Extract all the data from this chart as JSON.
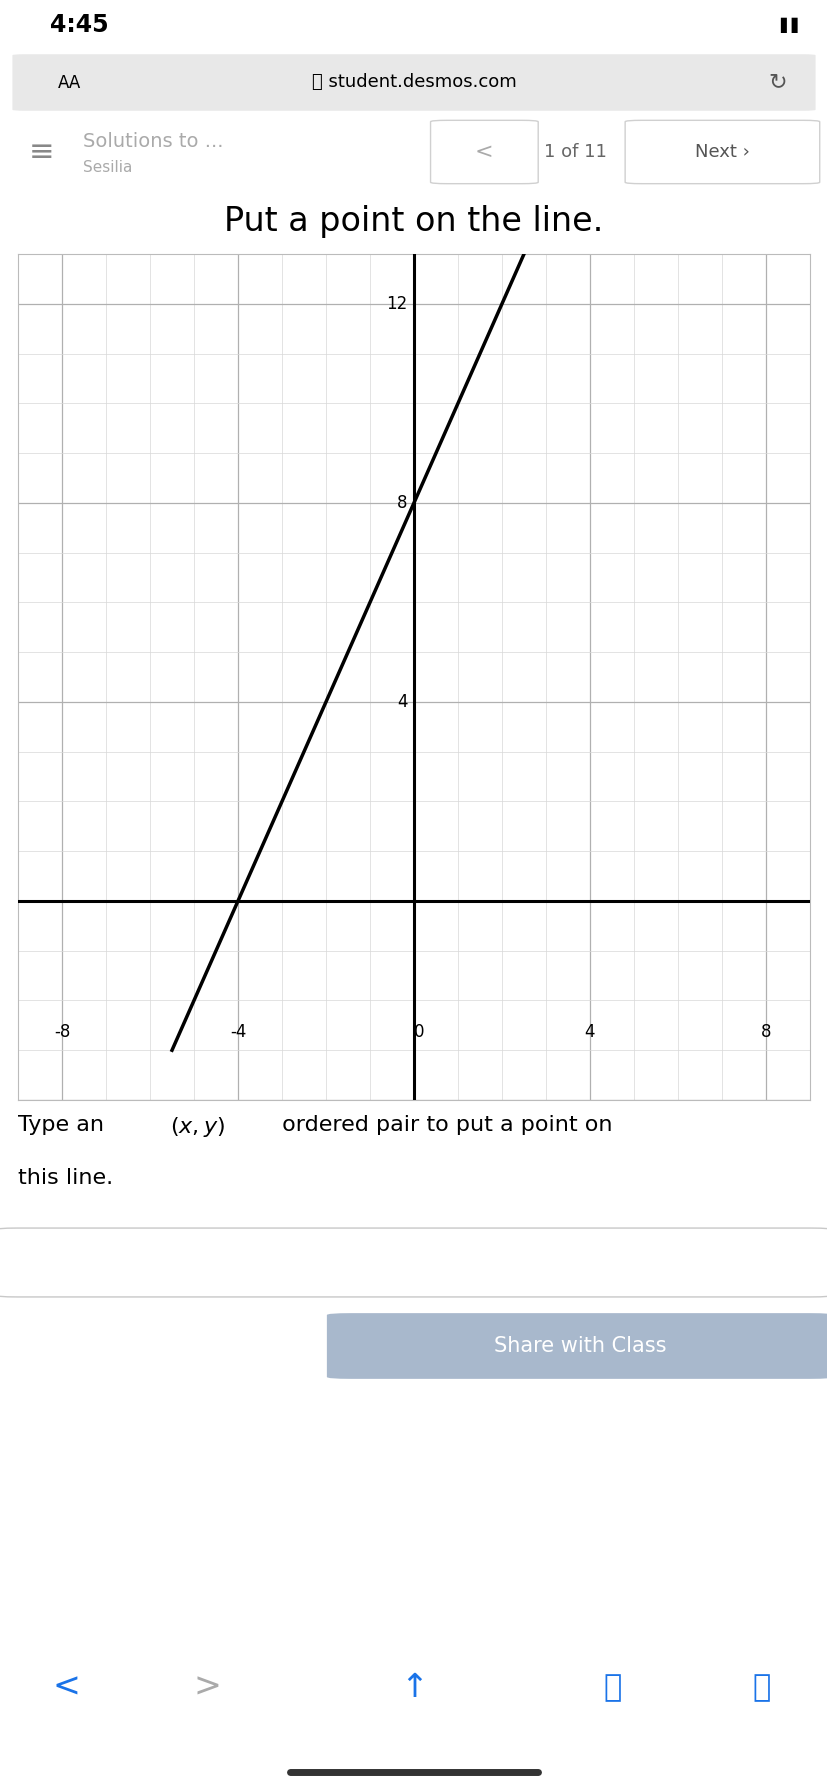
{
  "title": "Put a point on the line.",
  "status_bar_time": "4:45",
  "url": "student.desmos.com",
  "nav_label": "Solutions to ...",
  "nav_sub": "Sesilia",
  "nav_page": "1 of 11",
  "graph": {
    "xlim": [
      -9,
      9
    ],
    "ylim": [
      -3,
      13
    ],
    "xticks": [
      -8,
      -4,
      0,
      4,
      8
    ],
    "yticks": [
      4,
      8,
      12
    ],
    "ytick_labels": [
      "4",
      "8",
      "12"
    ],
    "xtick_labels": [
      "-8",
      "-4",
      "0",
      "4",
      "8"
    ],
    "minor_grid_step": 1,
    "major_grid_step": 4,
    "line_slope": 2,
    "line_intercept": 8,
    "line_color": "#000000",
    "line_width": 2.5,
    "axis_color": "#000000",
    "grid_color_minor": "#d8d8d8",
    "grid_color_major": "#b0b0b0",
    "background_color": "#ffffff",
    "border_color": "#bbbbbb"
  },
  "instruction_text": "Type an  ordered pair to put a point on\nthis line.",
  "share_button_text": "Share with Class",
  "share_button_color": "#a8b8cc",
  "share_button_text_color": "#ffffff",
  "page_bg": "#ffffff",
  "content_bg": "#ffffff",
  "toolbar_bg": "#f7f7f7",
  "nav_bg": "#f7f7f7",
  "bottom_bar_bg": "#f7f7f7",
  "separator_color": "#d0d0d0"
}
